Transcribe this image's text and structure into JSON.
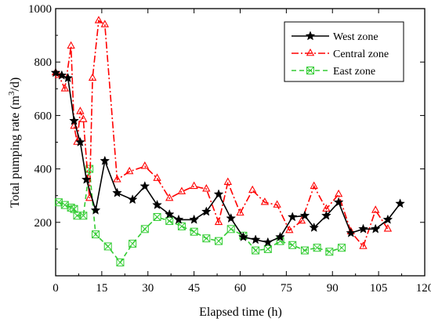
{
  "chart_data": {
    "type": "line",
    "xlabel": "Elapsed time (h)",
    "ylabel_main": "Total pumping rate (m",
    "ylabel_sup": "3",
    "ylabel_tail": "/d)",
    "xlim": [
      0,
      120
    ],
    "ylim": [
      0,
      1000
    ],
    "xticks": [
      0,
      15,
      30,
      45,
      60,
      75,
      90,
      105,
      120
    ],
    "yticks": [
      200,
      400,
      600,
      800,
      1000
    ],
    "ytick_labels_shown": [
      "200",
      "400",
      "600",
      "800",
      "1000"
    ],
    "grid": false,
    "legend_position": "top-right",
    "series": [
      {
        "name": "West zone",
        "color": "#000000",
        "line": "solid",
        "marker": "star",
        "points": [
          [
            0,
            760
          ],
          [
            2,
            750
          ],
          [
            4,
            740
          ],
          [
            6,
            580
          ],
          [
            8,
            500
          ],
          [
            10,
            360
          ],
          [
            13,
            245
          ],
          [
            16,
            430
          ],
          [
            20,
            310
          ],
          [
            25,
            285
          ],
          [
            29,
            335
          ],
          [
            33,
            265
          ],
          [
            37,
            230
          ],
          [
            40,
            210
          ],
          [
            45,
            210
          ],
          [
            49,
            240
          ],
          [
            53,
            305
          ],
          [
            57,
            215
          ],
          [
            61,
            145
          ],
          [
            65,
            135
          ],
          [
            69,
            125
          ],
          [
            73,
            145
          ],
          [
            77,
            220
          ],
          [
            81,
            225
          ],
          [
            84,
            180
          ],
          [
            88,
            225
          ],
          [
            92,
            275
          ],
          [
            96,
            160
          ],
          [
            100,
            175
          ],
          [
            104,
            175
          ],
          [
            108,
            210
          ],
          [
            112,
            270
          ]
        ]
      },
      {
        "name": "Central zone",
        "color": "#ff0000",
        "line": "dash-dot",
        "marker": "triangle",
        "points": [
          [
            0,
            760
          ],
          [
            1,
            750
          ],
          [
            3,
            700
          ],
          [
            5,
            860
          ],
          [
            6,
            560
          ],
          [
            7,
            500
          ],
          [
            8,
            615
          ],
          [
            9,
            585
          ],
          [
            11,
            290
          ],
          [
            12,
            740
          ],
          [
            14,
            955
          ],
          [
            16,
            940
          ],
          [
            20,
            360
          ],
          [
            24,
            390
          ],
          [
            29,
            410
          ],
          [
            33,
            365
          ],
          [
            37,
            290
          ],
          [
            41,
            315
          ],
          [
            45,
            335
          ],
          [
            49,
            325
          ],
          [
            53,
            200
          ],
          [
            56,
            350
          ],
          [
            60,
            235
          ],
          [
            64,
            320
          ],
          [
            68,
            275
          ],
          [
            72,
            265
          ],
          [
            76,
            170
          ],
          [
            80,
            205
          ],
          [
            84,
            335
          ],
          [
            88,
            250
          ],
          [
            92,
            305
          ],
          [
            96,
            165
          ],
          [
            100,
            110
          ],
          [
            104,
            245
          ],
          [
            108,
            175
          ]
        ]
      },
      {
        "name": "East zone",
        "color": "#33cc33",
        "line": "dashed",
        "marker": "x-box",
        "points": [
          [
            1,
            275
          ],
          [
            3,
            265
          ],
          [
            5,
            255
          ],
          [
            6,
            250
          ],
          [
            7,
            225
          ],
          [
            9,
            225
          ],
          [
            11,
            400
          ],
          [
            13,
            155
          ],
          [
            17,
            110
          ],
          [
            21,
            50
          ],
          [
            25,
            120
          ],
          [
            29,
            175
          ],
          [
            33,
            220
          ],
          [
            37,
            205
          ],
          [
            41,
            185
          ],
          [
            45,
            165
          ],
          [
            49,
            140
          ],
          [
            53,
            130
          ],
          [
            57,
            175
          ],
          [
            61,
            150
          ],
          [
            65,
            95
          ],
          [
            69,
            100
          ],
          [
            73,
            130
          ],
          [
            77,
            115
          ],
          [
            81,
            95
          ],
          [
            85,
            105
          ],
          [
            89,
            90
          ],
          [
            93,
            105
          ]
        ]
      }
    ]
  }
}
